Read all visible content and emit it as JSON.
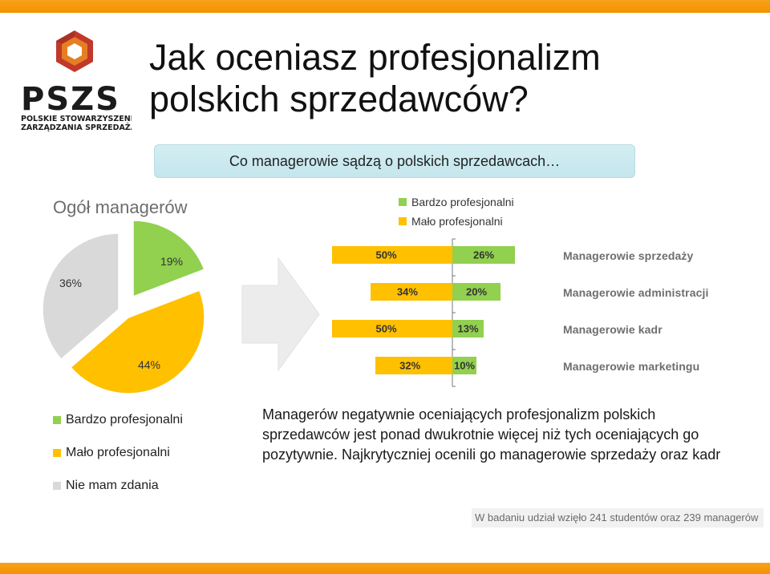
{
  "title_line1": "Jak oceniasz profesjonalizm",
  "title_line2": "polskich sprzedawców?",
  "subtitle": "Co managerowie sądzą o polskich sprzedawcach…",
  "logo": {
    "abbr": "PSZS",
    "line1": "POLSKIE STOWARZYSZENIE",
    "line2": "ZARZĄDZANIA SPRZEDAŻĄ"
  },
  "colors": {
    "green": "#92d050",
    "yellow": "#ffc000",
    "gray": "#d9d9d9",
    "orange": "#f39200",
    "red": "#c0392b"
  },
  "top_legend": [
    {
      "label": "Bardzo profesjonalni",
      "color": "#92d050"
    },
    {
      "label": "Mało profesjonalni",
      "color": "#ffc000"
    }
  ],
  "bottom_legend": [
    {
      "label": "Bardzo profesjonalni",
      "color": "#92d050"
    },
    {
      "label": "Mało profesjonalni",
      "color": "#ffc000"
    },
    {
      "label": "Nie mam zdania",
      "color": "#d9d9d9"
    }
  ],
  "summary": "Managerów negatywnie oceniających profesjonalizm polskich sprzedawców jest ponad dwukrotnie więcej niż tych oceniających go pozytywnie. Najkrytyczniej ocenili go managerowie sprzedaży oraz kadr",
  "footer": "W badaniu udział wzięło 241 studentów oraz 239 managerów",
  "chart_data": [
    {
      "type": "pie",
      "title": "Ogół managerów",
      "slices": [
        {
          "name": "Bardzo profesjonalni",
          "value": 19,
          "label": "19%",
          "color": "#92d050"
        },
        {
          "name": "Mało profesjonalni",
          "value": 44,
          "label": "44%",
          "color": "#ffc000"
        },
        {
          "name": "Nie mam zdania",
          "value": 36,
          "label": "36%",
          "color": "#d9d9d9"
        }
      ]
    },
    {
      "type": "bar",
      "orientation": "horizontal-diverging",
      "categories": [
        "Managerowie sprzedaży",
        "Managerowie administracji",
        "Managerowie kadr",
        "Managerowie marketingu"
      ],
      "series": [
        {
          "name": "Mało profesjonalni",
          "color": "#ffc000",
          "values": [
            50,
            34,
            50,
            32
          ],
          "labels": [
            "50%",
            "34%",
            "50%",
            "32%"
          ]
        },
        {
          "name": "Bardzo profesjonalni",
          "color": "#92d050",
          "values": [
            26,
            20,
            13,
            10
          ],
          "labels": [
            "26%",
            "20%",
            "13%",
            "10%"
          ]
        }
      ]
    }
  ]
}
